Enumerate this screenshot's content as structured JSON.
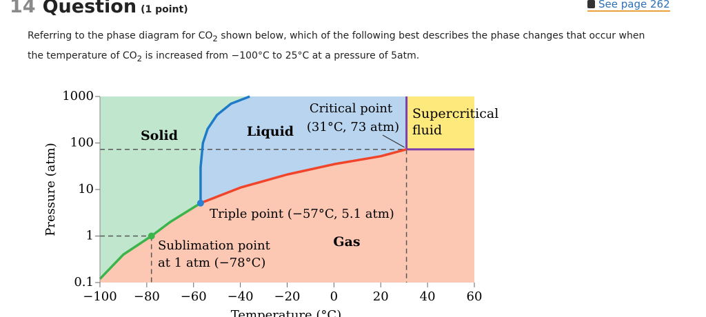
{
  "header": {
    "number": "14",
    "title": "Question",
    "points": "(1 point)",
    "link": "See page 262"
  },
  "question": {
    "parts": [
      "Referring to the phase diagram for CO",
      "2",
      " shown below, which of the following best describes the phase changes that occur when the temperature of CO",
      "2",
      " is increased from −100°C to 25°C at a pressure of 5atm."
    ]
  },
  "chart_data": {
    "type": "phase",
    "x_label": "Temperature (°C)",
    "y_label": "Pressure (atm)",
    "xlim": [
      -100,
      60
    ],
    "ylim": [
      0.1,
      1000
    ],
    "y_log": true,
    "xticks": [
      {
        "value": -100,
        "label": "−100"
      },
      {
        "value": -80,
        "label": "−80"
      },
      {
        "value": -60,
        "label": "−60"
      },
      {
        "value": -40,
        "label": "−40"
      },
      {
        "value": -20,
        "label": "−20"
      },
      0,
      20,
      40,
      60
    ],
    "yticks": [
      0.1,
      1,
      10,
      100,
      1000
    ],
    "series": [
      {
        "name": "sublimation",
        "color": "#3cb44b",
        "x": [
          -100,
          -90,
          -78,
          -70,
          -57
        ],
        "values": [
          0.12,
          0.4,
          1,
          2,
          5.1
        ]
      },
      {
        "name": "melting",
        "color": "#1f7bc8",
        "x": [
          -57,
          -57,
          -56,
          -54,
          -50,
          -44,
          -36
        ],
        "values": [
          5.1,
          30,
          100,
          200,
          400,
          700,
          1000
        ]
      },
      {
        "name": "vaporization",
        "color": "#f0452a",
        "x": [
          -57,
          -40,
          -20,
          0,
          20,
          31
        ],
        "values": [
          5.1,
          11,
          21,
          35,
          52,
          73
        ]
      }
    ],
    "region_colors": {
      "solid": "#c0e6cd",
      "liquid": "#b8d4ee",
      "gas": "#fdc8b3",
      "supercritical": "#fde97c"
    },
    "boundary_color": "#7b3fb0",
    "points": [
      {
        "x": -57,
        "y": 5.1,
        "color": "#2a80d2",
        "dashed": false
      },
      {
        "x": -78,
        "y": 1,
        "color": "#3cb44b",
        "dashed": true
      },
      {
        "x": 31,
        "y": 73,
        "dashed": true
      }
    ],
    "annotations": {
      "solid": "Solid",
      "liquid": "Liquid",
      "gas": "Gas",
      "supercritical": [
        "Supercritical",
        "fluid"
      ],
      "critical": [
        "Critical point",
        "(31°C, 73 atm)"
      ],
      "triple": "Triple point (−57°C, 5.1 atm)",
      "sublimation": [
        "Sublimation point",
        "at 1 atm (−78°C)"
      ]
    }
  }
}
